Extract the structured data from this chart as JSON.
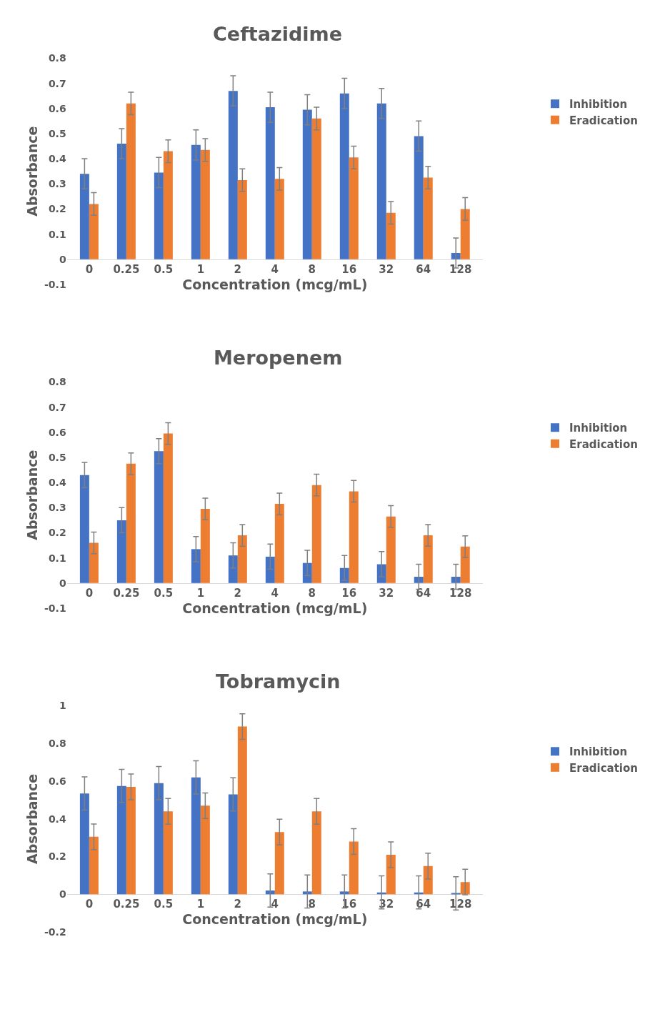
{
  "chart_data": [
    {
      "type": "bar",
      "title": "Ceftazidime",
      "xlabel": "Concentration (mcg/mL)",
      "ylabel": "Absorbance",
      "categories": [
        "0",
        "0.25",
        "0.5",
        "1",
        "2",
        "4",
        "8",
        "16",
        "32",
        "64",
        "128"
      ],
      "ylim": [
        -0.1,
        0.8
      ],
      "yticks": [
        -0.1,
        0,
        0.1,
        0.2,
        0.3,
        0.4,
        0.5,
        0.6,
        0.7,
        0.8
      ],
      "legend": "right",
      "series": [
        {
          "name": "Inhibition",
          "color": "#4472c4",
          "values": [
            0.34,
            0.46,
            0.345,
            0.455,
            0.67,
            0.605,
            0.595,
            0.66,
            0.62,
            0.49,
            0.025
          ],
          "errors": [
            0.06,
            0.06,
            0.06,
            0.06,
            0.06,
            0.06,
            0.06,
            0.06,
            0.06,
            0.06,
            0.06
          ]
        },
        {
          "name": "Eradication",
          "color": "#ed7d31",
          "values": [
            0.22,
            0.62,
            0.43,
            0.435,
            0.315,
            0.32,
            0.56,
            0.405,
            0.185,
            0.325,
            0.2
          ],
          "errors": [
            0.045,
            0.045,
            0.045,
            0.045,
            0.045,
            0.045,
            0.045,
            0.045,
            0.045,
            0.045,
            0.045
          ]
        }
      ]
    },
    {
      "type": "bar",
      "title": "Meropenem",
      "xlabel": "Concentration (mcg/mL)",
      "ylabel": "Absorbance",
      "categories": [
        "0",
        "0.25",
        "0.5",
        "1",
        "2",
        "4",
        "8",
        "16",
        "32",
        "64",
        "128"
      ],
      "ylim": [
        -0.1,
        0.8
      ],
      "yticks": [
        -0.1,
        0,
        0.1,
        0.2,
        0.3,
        0.4,
        0.5,
        0.6,
        0.7,
        0.8
      ],
      "legend": "right",
      "series": [
        {
          "name": "Inhibition",
          "color": "#4472c4",
          "values": [
            0.43,
            0.25,
            0.525,
            0.135,
            0.11,
            0.105,
            0.08,
            0.06,
            0.075,
            0.025,
            0.025
          ],
          "errors": [
            0.05,
            0.05,
            0.05,
            0.05,
            0.05,
            0.05,
            0.05,
            0.05,
            0.05,
            0.05,
            0.05
          ]
        },
        {
          "name": "Eradication",
          "color": "#ed7d31",
          "values": [
            0.16,
            0.475,
            0.595,
            0.295,
            0.19,
            0.315,
            0.39,
            0.365,
            0.265,
            0.19,
            0.145
          ],
          "errors": [
            0.043,
            0.043,
            0.043,
            0.043,
            0.043,
            0.043,
            0.043,
            0.043,
            0.043,
            0.043,
            0.043
          ]
        }
      ]
    },
    {
      "type": "bar",
      "title": "Tobramycin",
      "xlabel": "Concentration (mcg/mL)",
      "ylabel": "Absorbance",
      "categories": [
        "0",
        "0.25",
        "0.5",
        "1",
        "2",
        "4",
        "8",
        "16",
        "32",
        "64",
        "128"
      ],
      "ylim": [
        -0.2,
        1
      ],
      "yticks": [
        -0.2,
        0,
        0.2,
        0.4,
        0.6,
        0.8,
        1
      ],
      "legend": "right",
      "series": [
        {
          "name": "Inhibition",
          "color": "#4472c4",
          "values": [
            0.535,
            0.575,
            0.59,
            0.62,
            0.53,
            0.02,
            0.015,
            0.015,
            0.01,
            0.01,
            0.005
          ],
          "errors": [
            0.088,
            0.088,
            0.088,
            0.088,
            0.088,
            0.088,
            0.088,
            0.088,
            0.088,
            0.088,
            0.088
          ]
        },
        {
          "name": "Eradication",
          "color": "#ed7d31",
          "values": [
            0.305,
            0.57,
            0.44,
            0.47,
            0.89,
            0.33,
            0.44,
            0.28,
            0.21,
            0.15,
            0.065
          ],
          "errors": [
            0.068,
            0.068,
            0.068,
            0.068,
            0.068,
            0.068,
            0.068,
            0.068,
            0.068,
            0.068,
            0.068
          ]
        }
      ]
    }
  ]
}
